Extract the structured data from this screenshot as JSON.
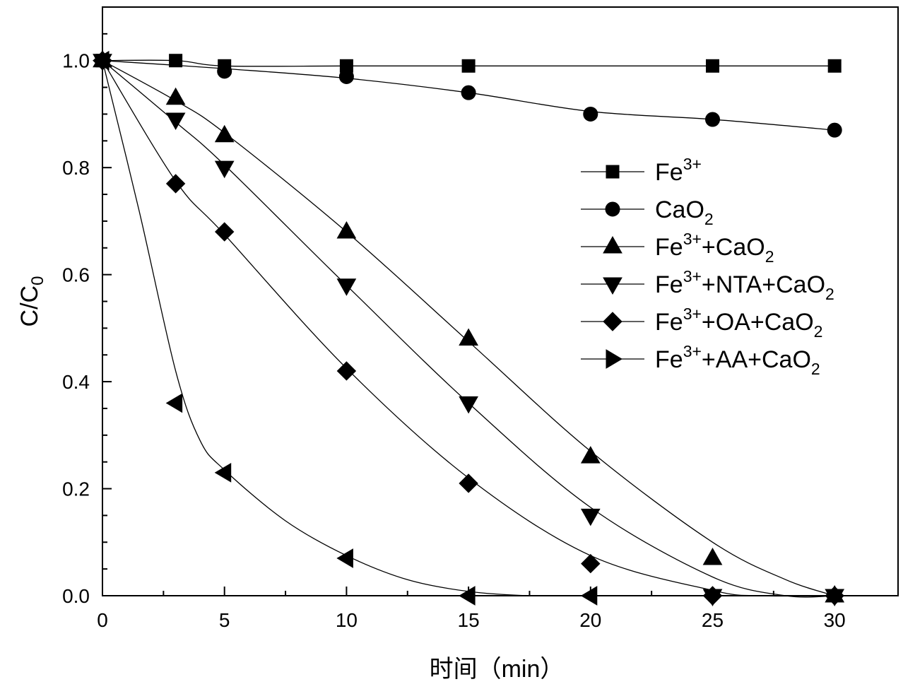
{
  "chart_data": {
    "type": "line",
    "title": "",
    "xlabel": "时间（min）",
    "ylabel": {
      "main": "C/C",
      "sub": "0"
    },
    "xlim": [
      0,
      32.6
    ],
    "ylim": [
      0,
      1.1
    ],
    "xticks": [
      0,
      5,
      10,
      15,
      20,
      25,
      30
    ],
    "xtick_labels": [
      "0",
      "5",
      "10",
      "15",
      "20",
      "25",
      "30"
    ],
    "yticks": [
      0.0,
      0.2,
      0.4,
      0.6,
      0.8,
      1.0
    ],
    "ytick_labels": [
      "0.0",
      "0.2",
      "0.4",
      "0.6",
      "0.8",
      "1.0"
    ],
    "grid": false,
    "legend_position": "right",
    "series": [
      {
        "id": "fe3",
        "label": [
          {
            "t": "Fe"
          },
          {
            "t": "3+",
            "sup": true
          }
        ],
        "marker": "square",
        "points": [
          [
            0,
            1.0
          ],
          [
            3,
            1.0
          ],
          [
            5,
            0.99
          ],
          [
            10,
            0.99
          ],
          [
            15,
            0.99
          ],
          [
            25,
            0.99
          ],
          [
            30,
            0.99
          ]
        ],
        "curve": [
          [
            0,
            1.0
          ],
          [
            3,
            1.0
          ],
          [
            5,
            0.99
          ],
          [
            10,
            0.99
          ],
          [
            15,
            0.99
          ],
          [
            25,
            0.99
          ],
          [
            30,
            0.99
          ]
        ]
      },
      {
        "id": "cao2",
        "label": [
          {
            "t": "CaO"
          },
          {
            "t": "2",
            "sub": true
          }
        ],
        "marker": "circle",
        "points": [
          [
            0,
            1.0
          ],
          [
            5,
            0.98
          ],
          [
            10,
            0.97
          ],
          [
            15,
            0.94
          ],
          [
            20,
            0.9
          ],
          [
            25,
            0.89
          ],
          [
            30,
            0.87
          ]
        ],
        "curve": [
          [
            0,
            1.0
          ],
          [
            5,
            0.985
          ],
          [
            10,
            0.967
          ],
          [
            15,
            0.94
          ],
          [
            20,
            0.905
          ],
          [
            25,
            0.89
          ],
          [
            30,
            0.87
          ]
        ]
      },
      {
        "id": "fe3-cao2",
        "label": [
          {
            "t": "Fe"
          },
          {
            "t": "3+",
            "sup": true
          },
          {
            "t": "+CaO"
          },
          {
            "t": "2",
            "sub": true
          }
        ],
        "marker": "triangle-up",
        "points": [
          [
            0,
            1.0
          ],
          [
            3,
            0.93
          ],
          [
            5,
            0.86
          ],
          [
            10,
            0.68
          ],
          [
            15,
            0.48
          ],
          [
            20,
            0.26
          ],
          [
            25,
            0.07
          ],
          [
            30,
            0.0
          ]
        ],
        "curve": [
          [
            0,
            1.0
          ],
          [
            3,
            0.925
          ],
          [
            5,
            0.865
          ],
          [
            10,
            0.68
          ],
          [
            15,
            0.475
          ],
          [
            20,
            0.27
          ],
          [
            25,
            0.1
          ],
          [
            28,
            0.03
          ],
          [
            30,
            0.0
          ]
        ]
      },
      {
        "id": "fe3-nta-cao2",
        "label": [
          {
            "t": "Fe"
          },
          {
            "t": "3+",
            "sup": true
          },
          {
            "t": "+NTA+CaO"
          },
          {
            "t": "2",
            "sub": true
          }
        ],
        "marker": "triangle-down",
        "points": [
          [
            0,
            1.0
          ],
          [
            3,
            0.89
          ],
          [
            5,
            0.8
          ],
          [
            10,
            0.58
          ],
          [
            15,
            0.36
          ],
          [
            20,
            0.15
          ],
          [
            25,
            0.0
          ],
          [
            30,
            0.0
          ]
        ],
        "curve": [
          [
            0,
            1.0
          ],
          [
            3,
            0.885
          ],
          [
            5,
            0.805
          ],
          [
            10,
            0.58
          ],
          [
            15,
            0.36
          ],
          [
            20,
            0.165
          ],
          [
            25,
            0.035
          ],
          [
            28,
            0.0
          ],
          [
            30,
            0.0
          ]
        ]
      },
      {
        "id": "fe3-oa-cao2",
        "label": [
          {
            "t": "Fe"
          },
          {
            "t": "3+",
            "sup": true
          },
          {
            "t": "+OA+CaO"
          },
          {
            "t": "2",
            "sub": true
          }
        ],
        "marker": "diamond",
        "points": [
          [
            0,
            1.0
          ],
          [
            3,
            0.77
          ],
          [
            5,
            0.68
          ],
          [
            10,
            0.42
          ],
          [
            15,
            0.21
          ],
          [
            20,
            0.06
          ],
          [
            25,
            0.0
          ],
          [
            30,
            0.0
          ]
        ],
        "curve": [
          [
            0,
            1.0
          ],
          [
            3,
            0.775
          ],
          [
            5,
            0.675
          ],
          [
            10,
            0.425
          ],
          [
            15,
            0.22
          ],
          [
            20,
            0.075
          ],
          [
            25,
            0.01
          ],
          [
            27,
            0.0
          ],
          [
            30,
            0.0
          ]
        ]
      },
      {
        "id": "fe3-aa-cao2",
        "label": [
          {
            "t": "Fe"
          },
          {
            "t": "3+",
            "sup": true
          },
          {
            "t": "+AA+CaO"
          },
          {
            "t": "2",
            "sub": true
          }
        ],
        "marker": "triangle-right",
        "legend_marker": "triangle-right",
        "plot_marker": "triangle-left",
        "points": [
          [
            0,
            1.0
          ],
          [
            3,
            0.36
          ],
          [
            5,
            0.23
          ],
          [
            10,
            0.07
          ],
          [
            15,
            0.0
          ],
          [
            20,
            0.0
          ]
        ],
        "curve": [
          [
            0,
            1.0
          ],
          [
            1.5,
            0.72
          ],
          [
            3,
            0.42
          ],
          [
            4,
            0.29
          ],
          [
            5,
            0.235
          ],
          [
            7.5,
            0.14
          ],
          [
            10,
            0.075
          ],
          [
            12.5,
            0.03
          ],
          [
            15,
            0.008
          ],
          [
            17.5,
            0.0
          ],
          [
            20,
            0.0
          ]
        ]
      }
    ]
  }
}
